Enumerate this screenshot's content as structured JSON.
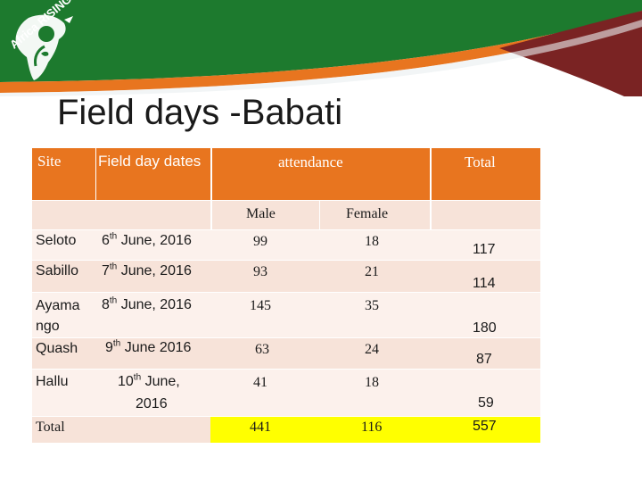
{
  "title": "Field days -Babati",
  "logo": {
    "text": "Africa RISING"
  },
  "colors": {
    "header": "#e8751f",
    "row": "#f7e3d9",
    "row_alt": "#fcf1ec",
    "total": "#ffff00",
    "banner_green": "#1d7a2e",
    "banner_red": "#7a2323"
  },
  "table": {
    "headers": {
      "site": "Site",
      "dates": "Field day dates",
      "attendance": "attendance",
      "total": "Total",
      "male": "Male",
      "female": "Female"
    },
    "rows": [
      {
        "site": "Seloto",
        "date_day": "6",
        "date_sup": "th",
        "date_rest": " June, 2016",
        "male": "99",
        "female": "18",
        "total": "117"
      },
      {
        "site": "Sabillo",
        "date_day": "7",
        "date_sup": "th",
        "date_rest": " June, 2016",
        "male": "93",
        "female": "21",
        "total": "114"
      },
      {
        "site_line1": "Ayama",
        "site_line2": "ngo",
        "date_day": "8",
        "date_sup": "th",
        "date_rest": " June, 2016",
        "male": "145",
        "female": "35",
        "total": "180"
      },
      {
        "site": "Quash",
        "date_day": "9",
        "date_sup": "th",
        "date_rest": " June 2016",
        "male": "63",
        "female": "24",
        "total": "87"
      },
      {
        "site": "Hallu",
        "date_day": "10",
        "date_sup": "th",
        "date_rest": " June,",
        "date_line2": "2016",
        "male": "41",
        "female": "18",
        "total": "59"
      }
    ],
    "totals": {
      "label": "Total",
      "male": "441",
      "female": "116",
      "total": "557"
    }
  }
}
